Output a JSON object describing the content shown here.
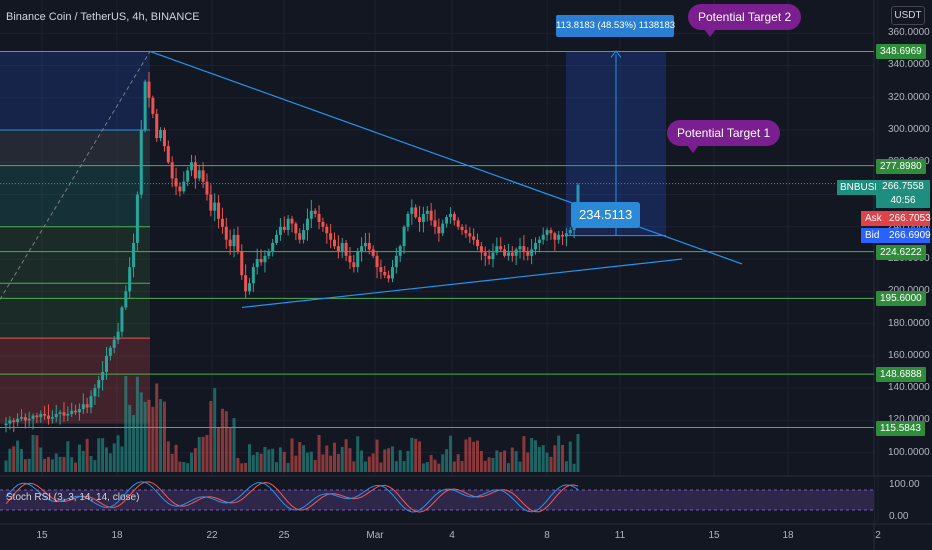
{
  "header": {
    "title": "Binance Coin / TetherUS, 4h, BINANCE"
  },
  "indicator": {
    "label": "Stoch RSI (3, 3, 14, 14, close)"
  },
  "currency": "USDT",
  "callouts": {
    "target2": "Potential Target 2",
    "target1": "Potential Target 1"
  },
  "range_measure": "113.8183 (48.53%) 1138183",
  "current_callout": "234.5113",
  "symbol_badge": "BNBUSDT",
  "current_price": "266.7558",
  "countdown": "40:56",
  "ask": {
    "label": "Ask",
    "value": "266.7053"
  },
  "bid": {
    "label": "Bid",
    "value": "266.6909"
  },
  "colors": {
    "background": "#131722",
    "up": "#26a69a",
    "down": "#ef5350",
    "level_line": "#4caf50",
    "trend_line": "#2196f3",
    "callout": "#7b1e8f",
    "rsi_k": "#2196f3",
    "rsi_d": "#ff5252",
    "rsi_band": "#7e57c2"
  },
  "chart_data": {
    "type": "candlestick",
    "ylim": [
      88,
      362
    ],
    "price_axis_ticks": [
      "360.0000",
      "340.0000",
      "320.0000",
      "300.0000",
      "280.0000",
      "260.0000",
      "240.0000",
      "220.0000",
      "200.0000",
      "180.0000",
      "160.0000",
      "140.0000",
      "120.0000",
      "100.0000"
    ],
    "x_tick_labels": [
      "15",
      "18",
      "22",
      "25",
      "Mar",
      "4",
      "8",
      "11",
      "15",
      "18",
      "2"
    ],
    "horizontal_levels": [
      {
        "label": "348.6969",
        "value": 348.6969
      },
      {
        "label": "277.8980",
        "value": 277.898
      },
      {
        "label": "224.6222",
        "value": 224.6222
      },
      {
        "label": "195.6000",
        "value": 195.6
      },
      {
        "label": "148.6888",
        "value": 148.6888
      },
      {
        "label": "115.5843",
        "value": 115.5843
      }
    ],
    "rsi_axis_ticks": [
      "100.00",
      "0.00"
    ],
    "closes": [
      118,
      120,
      119,
      121,
      122,
      120,
      121,
      123,
      122,
      124,
      123,
      121,
      122,
      124,
      125,
      123,
      124,
      126,
      125,
      127,
      130,
      128,
      135,
      140,
      145,
      150,
      160,
      165,
      170,
      175,
      190,
      200,
      215,
      230,
      260,
      300,
      330,
      320,
      310,
      295,
      300,
      290,
      280,
      270,
      265,
      262,
      268,
      275,
      280,
      270,
      275,
      268,
      260,
      250,
      255,
      245,
      240,
      232,
      228,
      235,
      225,
      210,
      200,
      205,
      215,
      220,
      218,
      222,
      225,
      230,
      235,
      240,
      238,
      245,
      242,
      236,
      232,
      238,
      245,
      250,
      248,
      243,
      240,
      236,
      232,
      228,
      225,
      230,
      222,
      218,
      215,
      225,
      228,
      230,
      226,
      222,
      215,
      212,
      210,
      208,
      215,
      222,
      228,
      240,
      248,
      252,
      246,
      243,
      248,
      250,
      244,
      240,
      236,
      242,
      246,
      248,
      244,
      240,
      238,
      236,
      234,
      232,
      228,
      224,
      222,
      220,
      224,
      228,
      226,
      222,
      224,
      222,
      226,
      228,
      225,
      222,
      226,
      230,
      232,
      235,
      238,
      236,
      232,
      235,
      234,
      236,
      238,
      242,
      266
    ]
  }
}
